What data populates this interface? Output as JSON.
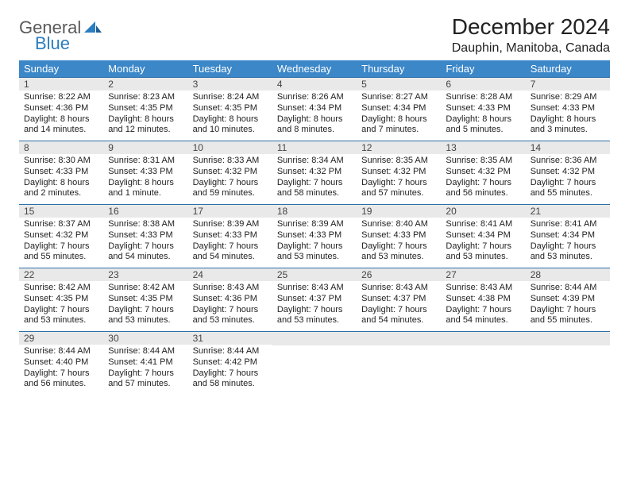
{
  "brand": {
    "part1": "General",
    "part2": "Blue"
  },
  "title": "December 2024",
  "location": "Dauphin, Manitoba, Canada",
  "colors": {
    "header_bg": "#3b87c8",
    "row_divider": "#2f6fa8",
    "daynum_bg": "#e9e9e9",
    "logo_gray": "#5a5a5a",
    "logo_blue": "#2b7dbf"
  },
  "weekdays": [
    "Sunday",
    "Monday",
    "Tuesday",
    "Wednesday",
    "Thursday",
    "Friday",
    "Saturday"
  ],
  "weeks": [
    [
      {
        "n": "1",
        "sunrise": "8:22 AM",
        "sunset": "4:36 PM",
        "day": "8 hours and 14 minutes."
      },
      {
        "n": "2",
        "sunrise": "8:23 AM",
        "sunset": "4:35 PM",
        "day": "8 hours and 12 minutes."
      },
      {
        "n": "3",
        "sunrise": "8:24 AM",
        "sunset": "4:35 PM",
        "day": "8 hours and 10 minutes."
      },
      {
        "n": "4",
        "sunrise": "8:26 AM",
        "sunset": "4:34 PM",
        "day": "8 hours and 8 minutes."
      },
      {
        "n": "5",
        "sunrise": "8:27 AM",
        "sunset": "4:34 PM",
        "day": "8 hours and 7 minutes."
      },
      {
        "n": "6",
        "sunrise": "8:28 AM",
        "sunset": "4:33 PM",
        "day": "8 hours and 5 minutes."
      },
      {
        "n": "7",
        "sunrise": "8:29 AM",
        "sunset": "4:33 PM",
        "day": "8 hours and 3 minutes."
      }
    ],
    [
      {
        "n": "8",
        "sunrise": "8:30 AM",
        "sunset": "4:33 PM",
        "day": "8 hours and 2 minutes."
      },
      {
        "n": "9",
        "sunrise": "8:31 AM",
        "sunset": "4:33 PM",
        "day": "8 hours and 1 minute."
      },
      {
        "n": "10",
        "sunrise": "8:33 AM",
        "sunset": "4:32 PM",
        "day": "7 hours and 59 minutes."
      },
      {
        "n": "11",
        "sunrise": "8:34 AM",
        "sunset": "4:32 PM",
        "day": "7 hours and 58 minutes."
      },
      {
        "n": "12",
        "sunrise": "8:35 AM",
        "sunset": "4:32 PM",
        "day": "7 hours and 57 minutes."
      },
      {
        "n": "13",
        "sunrise": "8:35 AM",
        "sunset": "4:32 PM",
        "day": "7 hours and 56 minutes."
      },
      {
        "n": "14",
        "sunrise": "8:36 AM",
        "sunset": "4:32 PM",
        "day": "7 hours and 55 minutes."
      }
    ],
    [
      {
        "n": "15",
        "sunrise": "8:37 AM",
        "sunset": "4:32 PM",
        "day": "7 hours and 55 minutes."
      },
      {
        "n": "16",
        "sunrise": "8:38 AM",
        "sunset": "4:33 PM",
        "day": "7 hours and 54 minutes."
      },
      {
        "n": "17",
        "sunrise": "8:39 AM",
        "sunset": "4:33 PM",
        "day": "7 hours and 54 minutes."
      },
      {
        "n": "18",
        "sunrise": "8:39 AM",
        "sunset": "4:33 PM",
        "day": "7 hours and 53 minutes."
      },
      {
        "n": "19",
        "sunrise": "8:40 AM",
        "sunset": "4:33 PM",
        "day": "7 hours and 53 minutes."
      },
      {
        "n": "20",
        "sunrise": "8:41 AM",
        "sunset": "4:34 PM",
        "day": "7 hours and 53 minutes."
      },
      {
        "n": "21",
        "sunrise": "8:41 AM",
        "sunset": "4:34 PM",
        "day": "7 hours and 53 minutes."
      }
    ],
    [
      {
        "n": "22",
        "sunrise": "8:42 AM",
        "sunset": "4:35 PM",
        "day": "7 hours and 53 minutes."
      },
      {
        "n": "23",
        "sunrise": "8:42 AM",
        "sunset": "4:35 PM",
        "day": "7 hours and 53 minutes."
      },
      {
        "n": "24",
        "sunrise": "8:43 AM",
        "sunset": "4:36 PM",
        "day": "7 hours and 53 minutes."
      },
      {
        "n": "25",
        "sunrise": "8:43 AM",
        "sunset": "4:37 PM",
        "day": "7 hours and 53 minutes."
      },
      {
        "n": "26",
        "sunrise": "8:43 AM",
        "sunset": "4:37 PM",
        "day": "7 hours and 54 minutes."
      },
      {
        "n": "27",
        "sunrise": "8:43 AM",
        "sunset": "4:38 PM",
        "day": "7 hours and 54 minutes."
      },
      {
        "n": "28",
        "sunrise": "8:44 AM",
        "sunset": "4:39 PM",
        "day": "7 hours and 55 minutes."
      }
    ],
    [
      {
        "n": "29",
        "sunrise": "8:44 AM",
        "sunset": "4:40 PM",
        "day": "7 hours and 56 minutes."
      },
      {
        "n": "30",
        "sunrise": "8:44 AM",
        "sunset": "4:41 PM",
        "day": "7 hours and 57 minutes."
      },
      {
        "n": "31",
        "sunrise": "8:44 AM",
        "sunset": "4:42 PM",
        "day": "7 hours and 58 minutes."
      },
      null,
      null,
      null,
      null
    ]
  ]
}
